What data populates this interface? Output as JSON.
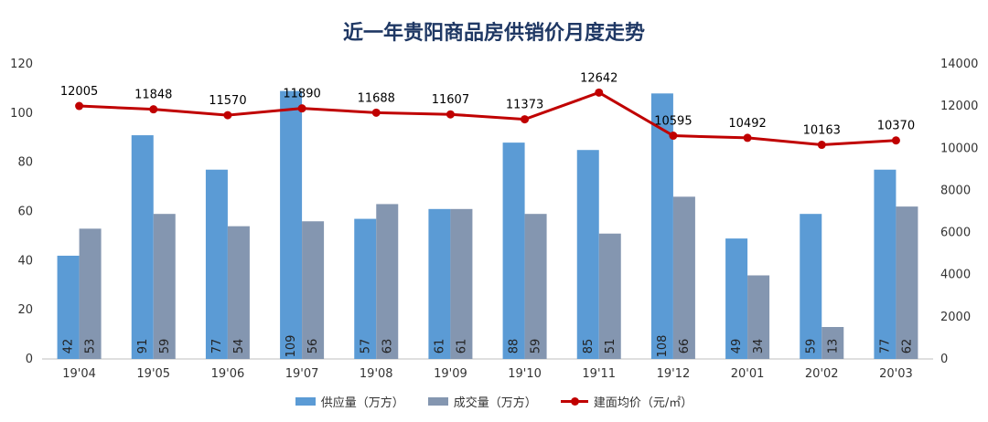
{
  "chart_data": {
    "type": "bar",
    "title": "近一年贵阳商品房供销价月度走势",
    "categories": [
      "19'04",
      "19'05",
      "19'06",
      "19'07",
      "19'08",
      "19'09",
      "19'10",
      "19'11",
      "19'12",
      "20'01",
      "20'02",
      "20'03"
    ],
    "series": [
      {
        "name": "供应量（万方）",
        "type": "bar",
        "axis": "left",
        "color": "#5b9bd5",
        "values": [
          42,
          91,
          77,
          109,
          57,
          61,
          88,
          85,
          108,
          49,
          59,
          77
        ]
      },
      {
        "name": "成交量（万方）",
        "type": "bar",
        "axis": "left",
        "color": "#8496b0",
        "values": [
          53,
          59,
          54,
          56,
          63,
          61,
          59,
          51,
          66,
          34,
          13,
          62
        ]
      },
      {
        "name": "建面均价（元/㎡）",
        "type": "line",
        "axis": "right",
        "color": "#c00000",
        "values": [
          12005,
          11848,
          11570,
          11890,
          11688,
          11607,
          11373,
          12642,
          10595,
          10492,
          10163,
          10370
        ]
      }
    ],
    "ylim_left": [
      0,
      120
    ],
    "yticks_left": [
      0,
      20,
      40,
      60,
      80,
      100,
      120
    ],
    "ylim_right": [
      0,
      14000
    ],
    "yticks_right": [
      0,
      2000,
      4000,
      6000,
      8000,
      10000,
      12000,
      14000
    ],
    "grid": false,
    "legend": "bottom"
  }
}
